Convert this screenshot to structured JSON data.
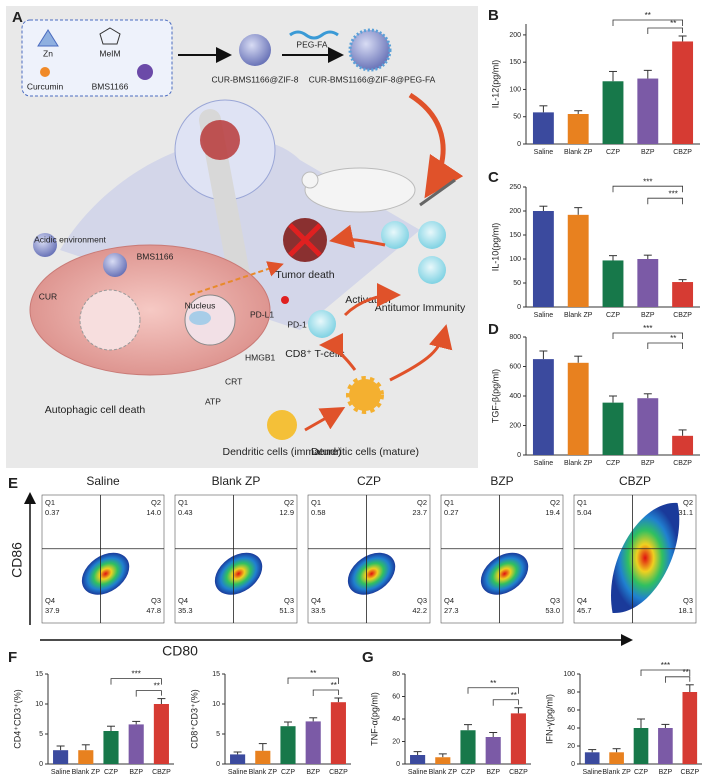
{
  "panel_labels": [
    "A",
    "B",
    "C",
    "D",
    "E",
    "F",
    "G"
  ],
  "diagram": {
    "zn": "Zn",
    "melm": "MeIM",
    "curcumin": "Curcumin",
    "bms": "BMS1166",
    "np1": "CUR-BMS1166@ZIF-8",
    "pegfa": "PEG-FA",
    "np2": "CUR-BMS1166@ZIF-8@PEG-FA",
    "acidic": "Acidic environment",
    "bms2": "BMS1166",
    "cur": "CUR",
    "nucleus": "Nucleus",
    "tumor_death": "Tumor death",
    "pdl1": "PD-L1",
    "pd1": "PD-1",
    "tcells": "CD8⁺ T-cells",
    "activation": "Activation",
    "immunity": "Antitumor Immunity",
    "hmgb1": "HMGB1",
    "crt": "CRT",
    "atp": "ATP",
    "autophagic": "Autophagic cell death",
    "dc_immature": "Dendritic cells (immature)",
    "dc_mature": "Dendritic cells (mature)"
  },
  "flow": {
    "y_label": "CD86",
    "x_label": "CD80",
    "plots": [
      {
        "title": "Saline",
        "quadrants": [
          {
            "name": "Q1",
            "value": "0.37"
          },
          {
            "name": "Q2",
            "value": "14.0"
          },
          {
            "name": "Q3",
            "value": "47.8"
          },
          {
            "name": "Q4",
            "value": "37.9"
          }
        ]
      },
      {
        "title": "Blank ZP",
        "quadrants": [
          {
            "name": "Q1",
            "value": "0.43"
          },
          {
            "name": "Q2",
            "value": "12.9"
          },
          {
            "name": "Q3",
            "value": "51.3"
          },
          {
            "name": "Q4",
            "value": "35.3"
          }
        ]
      },
      {
        "title": "CZP",
        "quadrants": [
          {
            "name": "Q1",
            "value": "0.58"
          },
          {
            "name": "Q2",
            "value": "23.7"
          },
          {
            "name": "Q3",
            "value": "42.2"
          },
          {
            "name": "Q4",
            "value": "33.5"
          }
        ]
      },
      {
        "title": "BZP",
        "quadrants": [
          {
            "name": "Q1",
            "value": "0.27"
          },
          {
            "name": "Q2",
            "value": "19.4"
          },
          {
            "name": "Q3",
            "value": "53.0"
          },
          {
            "name": "Q4",
            "value": "27.3"
          }
        ]
      },
      {
        "title": "CBZP",
        "quadrants": [
          {
            "name": "Q1",
            "value": "5.04"
          },
          {
            "name": "Q2",
            "value": "31.1"
          },
          {
            "name": "Q3",
            "value": "18.1"
          },
          {
            "name": "Q4",
            "value": "45.7"
          }
        ]
      }
    ]
  },
  "chart_data": [
    {
      "type": "bar",
      "y_label": "IL-12(pg/ml)",
      "categories": [
        "Saline",
        "Blank ZP",
        "CZP",
        "BZP",
        "CBZP"
      ],
      "colors": [
        "#3b4a9e",
        "#e8811f",
        "#17784a",
        "#7b5aa6",
        "#d63b33"
      ],
      "values": [
        58,
        55,
        115,
        120,
        188
      ],
      "errors": [
        12,
        6,
        18,
        15,
        10
      ],
      "ylim": [
        0,
        220
      ],
      "yticks": [
        0,
        50,
        100,
        150,
        200
      ],
      "significance": [
        {
          "between": [
            "CZP",
            "CBZP"
          ],
          "label": "**"
        },
        {
          "between": [
            "BZP",
            "CBZP"
          ],
          "label": "**"
        }
      ]
    },
    {
      "type": "bar",
      "y_label": "IL-10(pg/ml)",
      "categories": [
        "Saline",
        "Blank ZP",
        "CZP",
        "BZP",
        "CBZP"
      ],
      "colors": [
        "#3b4a9e",
        "#e8811f",
        "#17784a",
        "#7b5aa6",
        "#d63b33"
      ],
      "values": [
        200,
        192,
        97,
        100,
        52
      ],
      "errors": [
        10,
        15,
        10,
        8,
        5
      ],
      "ylim": [
        0,
        250
      ],
      "yticks": [
        0,
        50,
        100,
        150,
        200,
        250
      ],
      "significance": [
        {
          "between": [
            "CZP",
            "CBZP"
          ],
          "label": "***"
        },
        {
          "between": [
            "BZP",
            "CBZP"
          ],
          "label": "***"
        }
      ]
    },
    {
      "type": "bar",
      "y_label": "TGF-β(pg/ml)",
      "categories": [
        "Saline",
        "Blank ZP",
        "CZP",
        "BZP",
        "CBZP"
      ],
      "colors": [
        "#3b4a9e",
        "#e8811f",
        "#17784a",
        "#7b5aa6",
        "#d63b33"
      ],
      "values": [
        650,
        625,
        355,
        385,
        130
      ],
      "errors": [
        55,
        45,
        45,
        30,
        40
      ],
      "ylim": [
        0,
        800
      ],
      "yticks": [
        0,
        200,
        400,
        600,
        800
      ],
      "significance": [
        {
          "between": [
            "CZP",
            "CBZP"
          ],
          "label": "***"
        },
        {
          "between": [
            "BZP",
            "CBZP"
          ],
          "label": "**"
        }
      ]
    },
    {
      "type": "bar",
      "y_label": "CD4⁺CD3⁺(%)",
      "categories": [
        "Saline",
        "Blank ZP",
        "CZP",
        "BZP",
        "CBZP"
      ],
      "colors": [
        "#3b4a9e",
        "#e8811f",
        "#17784a",
        "#7b5aa6",
        "#d63b33"
      ],
      "values": [
        2.3,
        2.3,
        5.5,
        6.6,
        10
      ],
      "errors": [
        0.7,
        0.9,
        0.8,
        0.5,
        0.9
      ],
      "ylim": [
        0,
        15
      ],
      "yticks": [
        0,
        5,
        10,
        15
      ],
      "significance": [
        {
          "between": [
            "CZP",
            "CBZP"
          ],
          "label": "***"
        },
        {
          "between": [
            "BZP",
            "CBZP"
          ],
          "label": "**"
        }
      ]
    },
    {
      "type": "bar",
      "y_label": "CD8⁺CD3⁺(%)",
      "categories": [
        "Saline",
        "Blank ZP",
        "CZP",
        "BZP",
        "CBZP"
      ],
      "colors": [
        "#3b4a9e",
        "#e8811f",
        "#17784a",
        "#7b5aa6",
        "#d63b33"
      ],
      "values": [
        1.6,
        2.2,
        6.3,
        7.1,
        10.3
      ],
      "errors": [
        0.4,
        1.2,
        0.7,
        0.6,
        0.7
      ],
      "ylim": [
        0,
        15
      ],
      "yticks": [
        0,
        5,
        10,
        15
      ],
      "significance": [
        {
          "between": [
            "CZP",
            "CBZP"
          ],
          "label": "**"
        },
        {
          "between": [
            "BZP",
            "CBZP"
          ],
          "label": "**"
        }
      ]
    },
    {
      "type": "bar",
      "y_label": "TNF-α(pg/ml)",
      "categories": [
        "Saline",
        "Blank ZP",
        "CZP",
        "BZP",
        "CBZP"
      ],
      "colors": [
        "#3b4a9e",
        "#e8811f",
        "#17784a",
        "#7b5aa6",
        "#d63b33"
      ],
      "values": [
        8,
        6,
        30,
        24,
        45
      ],
      "errors": [
        3,
        3,
        5,
        4,
        5
      ],
      "ylim": [
        0,
        80
      ],
      "yticks": [
        0,
        20,
        40,
        60,
        80
      ],
      "significance": [
        {
          "between": [
            "CZP",
            "CBZP"
          ],
          "label": "**"
        },
        {
          "between": [
            "BZP",
            "CBZP"
          ],
          "label": "**"
        }
      ]
    },
    {
      "type": "bar",
      "y_label": "IFN-γ(pg/ml)",
      "categories": [
        "Saline",
        "Blank ZP",
        "CZP",
        "BZP",
        "CBZP"
      ],
      "colors": [
        "#3b4a9e",
        "#e8811f",
        "#17784a",
        "#7b5aa6",
        "#d63b33"
      ],
      "values": [
        13,
        13,
        40,
        40,
        80
      ],
      "errors": [
        3,
        4,
        10,
        4,
        8
      ],
      "ylim": [
        0,
        100
      ],
      "yticks": [
        0,
        20,
        40,
        60,
        80,
        100
      ],
      "significance": [
        {
          "between": [
            "CZP",
            "CBZP"
          ],
          "label": "***"
        },
        {
          "between": [
            "BZP",
            "CBZP"
          ],
          "label": "**"
        }
      ]
    }
  ]
}
